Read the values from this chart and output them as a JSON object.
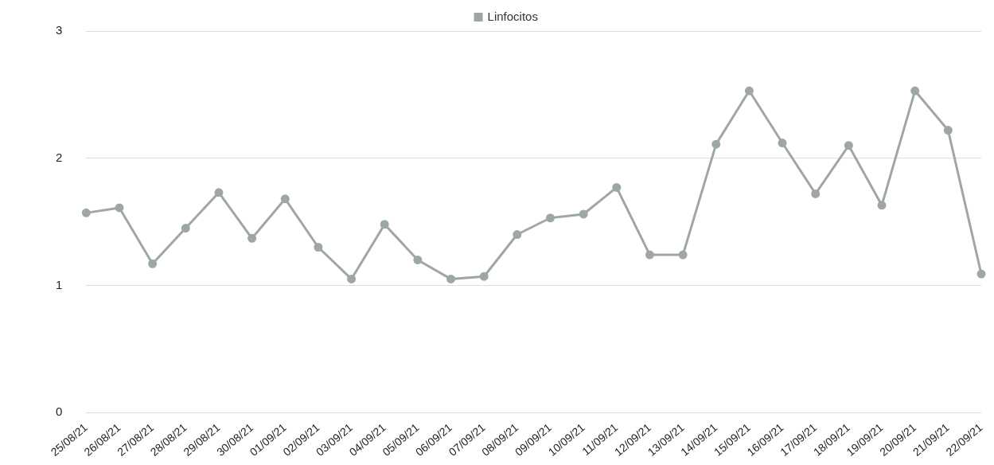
{
  "chart_data": {
    "type": "line",
    "categories": [
      "25/08/21",
      "26/08/21",
      "27/08/21",
      "28/08/21",
      "29/08/21",
      "30/08/21",
      "01/09/21",
      "02/09/21",
      "03/09/21",
      "04/09/21",
      "05/09/21",
      "06/09/21",
      "07/09/21",
      "08/09/21",
      "09/09/21",
      "10/09/21",
      "11/09/21",
      "12/09/21",
      "13/09/21",
      "14/09/21",
      "15/09/21",
      "16/09/21",
      "17/09/21",
      "18/09/21",
      "19/09/21",
      "20/09/21",
      "21/09/21",
      "22/09/21"
    ],
    "series": [
      {
        "name": "Linfocitos",
        "color": "#9ea7a2",
        "values": [
          1.57,
          1.61,
          1.17,
          1.45,
          1.73,
          1.37,
          1.68,
          1.3,
          1.05,
          1.48,
          1.2,
          1.05,
          1.07,
          1.4,
          1.53,
          1.56,
          1.77,
          1.24,
          1.24,
          2.11,
          2.53,
          2.12,
          1.72,
          2.1,
          1.63,
          2.53,
          2.22,
          1.09
        ]
      }
    ],
    "ylim": [
      0,
      3
    ],
    "yticks": [
      0,
      1,
      2,
      3
    ],
    "grid": "y",
    "legend": "top",
    "marker": "circle",
    "line_style": "solid"
  }
}
